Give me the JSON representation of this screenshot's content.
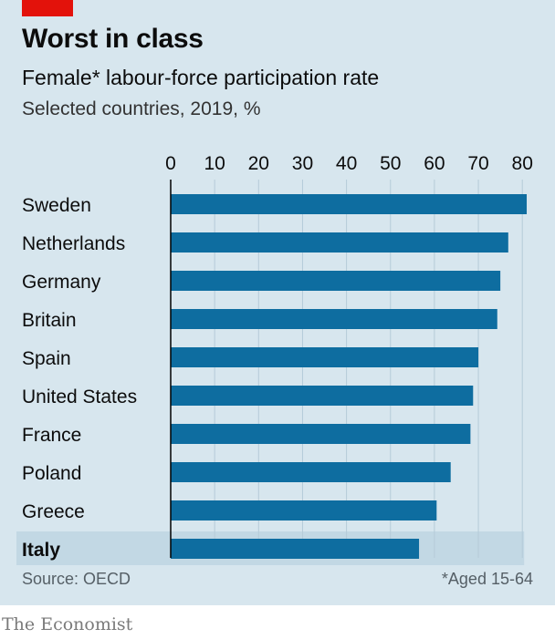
{
  "header": {
    "title": "Worst in class",
    "subtitle": "Female* labour-force participation rate",
    "subsubtitle": "Selected countries, 2019, %"
  },
  "footer": {
    "source": "Source: OECD",
    "footnote": "*Aged 15-64",
    "brand": "The Economist"
  },
  "colors": {
    "bar": "#0e6da0",
    "highlight_band": "#c2d8e4",
    "background": "#d7e6ee",
    "gridline": "#b5cbd8",
    "brand_red": "#e3120b"
  },
  "chart_data": {
    "type": "bar",
    "orientation": "horizontal",
    "categories": [
      "Sweden",
      "Netherlands",
      "Germany",
      "Britain",
      "Spain",
      "United States",
      "France",
      "Poland",
      "Greece",
      "Italy"
    ],
    "values": [
      81,
      76.8,
      75,
      74.3,
      70,
      68.8,
      68.2,
      63.7,
      60.5,
      56.5
    ],
    "highlight": "Italy",
    "xlim": [
      0,
      80
    ],
    "xticks": [
      0,
      10,
      20,
      30,
      40,
      50,
      60,
      70,
      80
    ],
    "grid": true,
    "title": "",
    "xlabel": "",
    "ylabel": ""
  }
}
